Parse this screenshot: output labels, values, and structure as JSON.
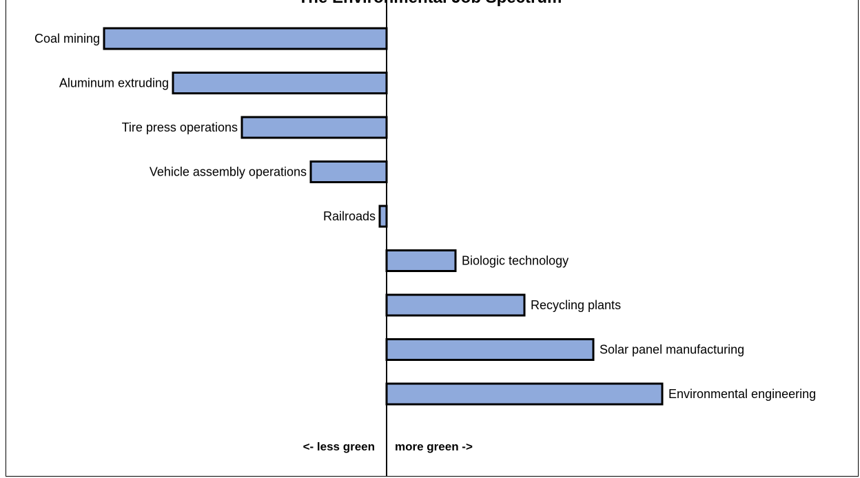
{
  "chart_data": {
    "type": "bar",
    "orientation": "horizontal",
    "title": "The Environmental Job Spectrum",
    "categories": [
      "Coal mining",
      "Aluminum extruding",
      "Tire press operations",
      "Vehicle assembly operations",
      "Railroads",
      "Biologic technology",
      "Recycling plants",
      "Solar panel manufacturing",
      "Environmental engineering"
    ],
    "values": [
      -4.1,
      -3.1,
      -2.1,
      -1.1,
      -0.1,
      1.0,
      2.0,
      3.0,
      4.0
    ],
    "xlim": [
      -5.5,
      6.9
    ],
    "grid": false,
    "legend": "none",
    "bar_color": "#8faadc",
    "bar_edge_color": "#000000",
    "annotations": {
      "left": "<- less green",
      "right": "more green ->"
    }
  }
}
